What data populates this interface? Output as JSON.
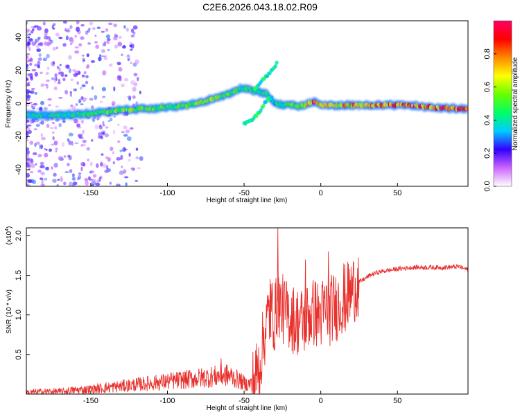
{
  "title": "C2E6.2026.043.18.02.R09",
  "chart_data": [
    {
      "type": "heatmap",
      "name": "spectrogram",
      "xlabel": "Height of straight line (km)",
      "ylabel": "Frequency (Hz)",
      "xlim": [
        -192,
        96
      ],
      "ylim": [
        -50,
        50
      ],
      "xticks": [
        -150,
        -100,
        -50,
        0,
        50
      ],
      "xtick_labels": [
        "-150",
        "-100",
        "-50",
        "0",
        "50"
      ],
      "yticks": [
        -40,
        -20,
        0,
        20,
        40
      ],
      "ytick_labels": [
        "-40",
        "-20",
        "0",
        "20",
        "40"
      ],
      "ridge": {
        "x": [
          -192,
          -170,
          -150,
          -130,
          -110,
          -95,
          -80,
          -70,
          -60,
          -52,
          -48,
          -44,
          -40,
          -35,
          -30,
          -25,
          -22,
          -15,
          -8,
          -4,
          0,
          10,
          20,
          30,
          50,
          70,
          85,
          96
        ],
        "freq": [
          -7,
          -7,
          -6,
          -4,
          -3,
          -2,
          0,
          3,
          6,
          9,
          9,
          8,
          7,
          6,
          0,
          -1,
          0,
          -2,
          0,
          1,
          -1,
          -1,
          -1,
          -1,
          -1,
          -2,
          -3,
          -3
        ],
        "amplitude": [
          0.4,
          0.45,
          0.5,
          0.6,
          0.55,
          0.5,
          0.6,
          0.6,
          0.55,
          0.5,
          0.5,
          0.5,
          0.45,
          0.5,
          0.4,
          0.5,
          0.5,
          0.6,
          0.8,
          0.9,
          0.7,
          0.75,
          0.8,
          0.85,
          0.9,
          0.9,
          0.95,
          0.95
        ]
      },
      "branches": [
        {
          "x": [
            -50,
            -45,
            -40,
            -36,
            -32
          ],
          "freq": [
            -12,
            -10,
            -5,
            1,
            4
          ]
        },
        {
          "x": [
            -44,
            -40,
            -36,
            -32,
            -28
          ],
          "freq": [
            8,
            12,
            16,
            20,
            25
          ]
        }
      ]
    },
    {
      "type": "colorbar",
      "label": "Normalized spectral amplitude",
      "range": [
        0,
        1
      ],
      "ticks": [
        0.0,
        0.2,
        0.4,
        0.6,
        0.8
      ],
      "tick_labels": [
        "0.0",
        "0.2",
        "0.4",
        "0.6",
        "0.8"
      ],
      "colors": [
        "#ffffff",
        "#cc66ff",
        "#3300ff",
        "#00ccff",
        "#00ff66",
        "#66ff00",
        "#ffff00",
        "#ff8800",
        "#ff0000",
        "#ff0066"
      ]
    },
    {
      "type": "line",
      "name": "snr",
      "xlabel": "Height of straight line (km)",
      "ylabel": "SNR (10 * v/v)",
      "scale_label": "(x10",
      "scale_exp": "4",
      "scale_close": ")",
      "xlim": [
        -192,
        96
      ],
      "ylim": [
        0,
        2.1
      ],
      "xticks": [
        -150,
        -100,
        -50,
        0,
        50
      ],
      "xtick_labels": [
        "-150",
        "-100",
        "-50",
        "0",
        "50"
      ],
      "yticks": [
        0.5,
        1.0,
        1.5,
        2.0
      ],
      "ytick_labels": [
        "0.5",
        "1.0",
        "1.5",
        "2.0"
      ],
      "line_color": "#e8302c",
      "series": [
        {
          "name": "SNR",
          "x": [
            -192,
            -180,
            -170,
            -160,
            -150,
            -140,
            -130,
            -120,
            -110,
            -100,
            -90,
            -80,
            -70,
            -62,
            -58,
            -52,
            -48,
            -44,
            -40,
            -38,
            -36,
            -34,
            -32,
            -30,
            -28,
            -26,
            -24,
            -22,
            -20,
            -18,
            -16,
            -14,
            -12,
            -10,
            -8,
            -6,
            -4,
            -2,
            0,
            2,
            4,
            6,
            8,
            10,
            12,
            14,
            16,
            18,
            20,
            24,
            28,
            32,
            36,
            40,
            50,
            60,
            70,
            80,
            90,
            96
          ],
          "y": [
            0.02,
            0.03,
            0.03,
            0.05,
            0.06,
            0.08,
            0.1,
            0.12,
            0.14,
            0.16,
            0.18,
            0.2,
            0.22,
            0.24,
            0.22,
            0.16,
            0.12,
            0.15,
            0.35,
            0.6,
            0.85,
            1.0,
            1.05,
            0.95,
            1.2,
            1.1,
            1.05,
            1.0,
            1.0,
            0.95,
            0.9,
            0.95,
            0.9,
            0.95,
            1.0,
            1.0,
            1.05,
            1.0,
            1.0,
            1.05,
            1.1,
            1.05,
            1.1,
            1.1,
            1.15,
            1.2,
            1.2,
            1.25,
            1.3,
            1.4,
            1.45,
            1.5,
            1.53,
            1.55,
            1.58,
            1.6,
            1.6,
            1.6,
            1.61,
            1.57
          ]
        }
      ],
      "spikes": [
        {
          "x": -28,
          "y": 2.1
        },
        {
          "x": -33,
          "y": 1.45
        },
        {
          "x": 5,
          "y": 1.8
        },
        {
          "x": 15,
          "y": 1.65
        },
        {
          "x": -10,
          "y": 1.7
        },
        {
          "x": -65,
          "y": 0.45
        },
        {
          "x": -120,
          "y": 0.2
        },
        {
          "x": 24,
          "y": 1.5
        }
      ]
    }
  ]
}
